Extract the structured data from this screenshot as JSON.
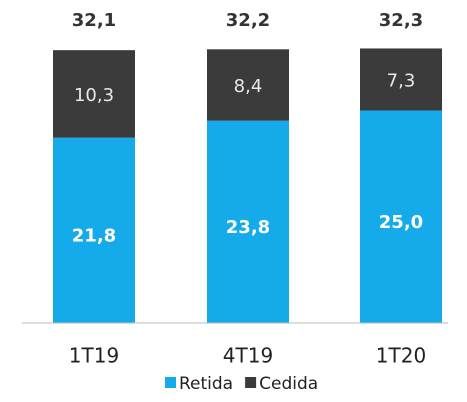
{
  "chart_data": {
    "type": "stacked_bar",
    "categories": [
      "1T19",
      "4T19",
      "1T20"
    ],
    "series": [
      {
        "name": "Retida",
        "color": "#15aaea",
        "values": [
          21.8,
          23.8,
          25.0
        ],
        "value_labels": [
          "21,8",
          "23,8",
          "25,0"
        ]
      },
      {
        "name": "Cedida",
        "color": "#3b3b3b",
        "values": [
          10.3,
          8.4,
          7.3
        ],
        "value_labels": [
          "10,3",
          "8,4",
          "7,3"
        ]
      }
    ],
    "totals": [
      32.1,
      32.2,
      32.3
    ],
    "total_labels": [
      "32,1",
      "32,2",
      "32,3"
    ],
    "legend": "bottom"
  }
}
